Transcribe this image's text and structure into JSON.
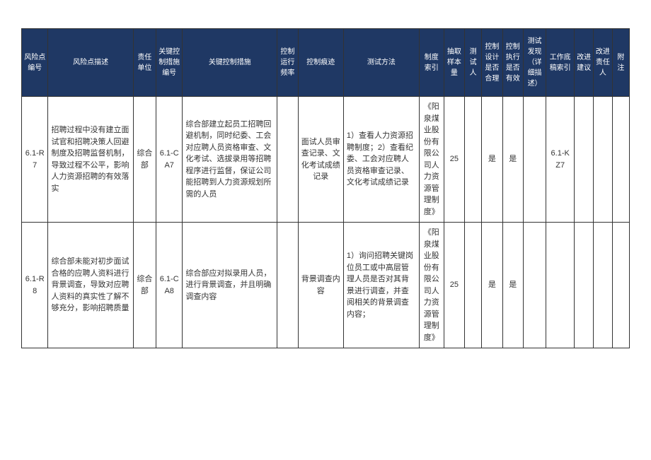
{
  "header_bg": "#1f3864",
  "header_color": "#ffffff",
  "border_color": "#333333",
  "columns": [
    {
      "key": "c0",
      "label": "风险点编号",
      "width": 28
    },
    {
      "key": "c1",
      "label": "风险点描述",
      "width": 90
    },
    {
      "key": "c2",
      "label": "责任单位",
      "width": 24
    },
    {
      "key": "c3",
      "label": "关键控制措施编号",
      "width": 28
    },
    {
      "key": "c4",
      "label": "关键控制措施",
      "width": 100
    },
    {
      "key": "c5",
      "label": "控制运行频率",
      "width": 22
    },
    {
      "key": "c6",
      "label": "控制痕迹",
      "width": 48
    },
    {
      "key": "c7",
      "label": "测试方法",
      "width": 80
    },
    {
      "key": "c8",
      "label": "制度索引",
      "width": 26
    },
    {
      "key": "c9",
      "label": "抽取样本量",
      "width": 22
    },
    {
      "key": "c10",
      "label": "测试人",
      "width": 18
    },
    {
      "key": "c11",
      "label": "控制设计是否合理",
      "width": 22
    },
    {
      "key": "c12",
      "label": "控制执行是否有效",
      "width": 22
    },
    {
      "key": "c13",
      "label": "测试发现（详细描述）",
      "width": 24
    },
    {
      "key": "c14",
      "label": "工作底稿索引",
      "width": 30
    },
    {
      "key": "c15",
      "label": "改进建议",
      "width": 20
    },
    {
      "key": "c16",
      "label": "改进责任人",
      "width": 20
    },
    {
      "key": "c17",
      "label": "附注",
      "width": 18
    }
  ],
  "rows": [
    {
      "c0": "6.1-R7",
      "c1": "招聘过程中没有建立面试官和招聘决策人回避制度及招聘监督机制，导致过程不公平，影响人力资源招聘的有效落实",
      "c2": "综合部",
      "c3": "6.1-CA7",
      "c4": "综合部建立起员工招聘回避机制，同时纪委、工会对应聘人员资格审查、文化考试、选拔录用等招聘程序进行监督，保证公司能招聘到人力资源规划所需的人员",
      "c5": "",
      "c6": "面试人员审查记录、文化考试成绩记录",
      "c7": "1）查看人力资源招聘制度；2）查看纪委、工会对应聘人员资格审查记录、文化考试成绩记录",
      "c8": "《阳泉煤业股份有限公司人力资源管理制度》",
      "c9": "25",
      "c10": "",
      "c11": "是",
      "c12": "是",
      "c13": "",
      "c14": "6.1-KZ7",
      "c15": "",
      "c16": "",
      "c17": ""
    },
    {
      "c0": "6.1-R8",
      "c1": "综合部未能对初步面试合格的应聘人资料进行背景调查，导致对应聘人资料的真实性了解不够充分，影响招聘质量",
      "c2": "综合部",
      "c3": "6.1-CA8",
      "c4": "综合部应对拟录用人员，进行背景调查，并且明确调查内容",
      "c5": "",
      "c6": "背景调查内容",
      "c7": "1）询问招聘关键岗位员工或中高层管理人员是否对其背景进行调查，并查阅相关的背景调查内容；",
      "c8": "《阳泉煤业股份有限公司人力资源管理制度》",
      "c9": "25",
      "c10": "",
      "c11": "是",
      "c12": "是",
      "c13": "",
      "c14": "",
      "c15": "",
      "c16": "",
      "c17": ""
    }
  ]
}
